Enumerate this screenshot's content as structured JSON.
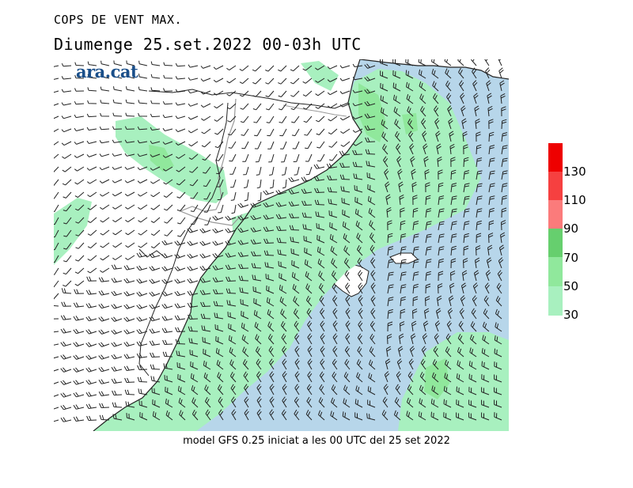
{
  "header": {
    "title": "COPS DE VENT MAX.",
    "subtitle": "Diumenge  25.set.2022 00-03h UTC"
  },
  "logo": {
    "text": "ara.cat"
  },
  "footer": {
    "text": "model GFS 0.25 iniciat a les 00 UTC del 25 set 2022"
  },
  "colors": {
    "sea": "#b7d6ea",
    "land": "#ffffff",
    "wind_30": "#a8f0bf",
    "wind_50": "#90e89c",
    "wind_70": "#66cf6e",
    "wind_90": "#fb7b7b",
    "wind_110": "#f64040",
    "wind_130": "#ee0000",
    "coast": "#222222",
    "border": "#888888"
  },
  "legend": {
    "items": [
      {
        "label": "30",
        "color": "#a8f0bf"
      },
      {
        "label": "50",
        "color": "#90e89c"
      },
      {
        "label": "70",
        "color": "#66cf6e"
      },
      {
        "label": "90",
        "color": "#fb7b7b"
      },
      {
        "label": "110",
        "color": "#f64040"
      },
      {
        "label": "130",
        "color": "#ee0000"
      }
    ]
  }
}
